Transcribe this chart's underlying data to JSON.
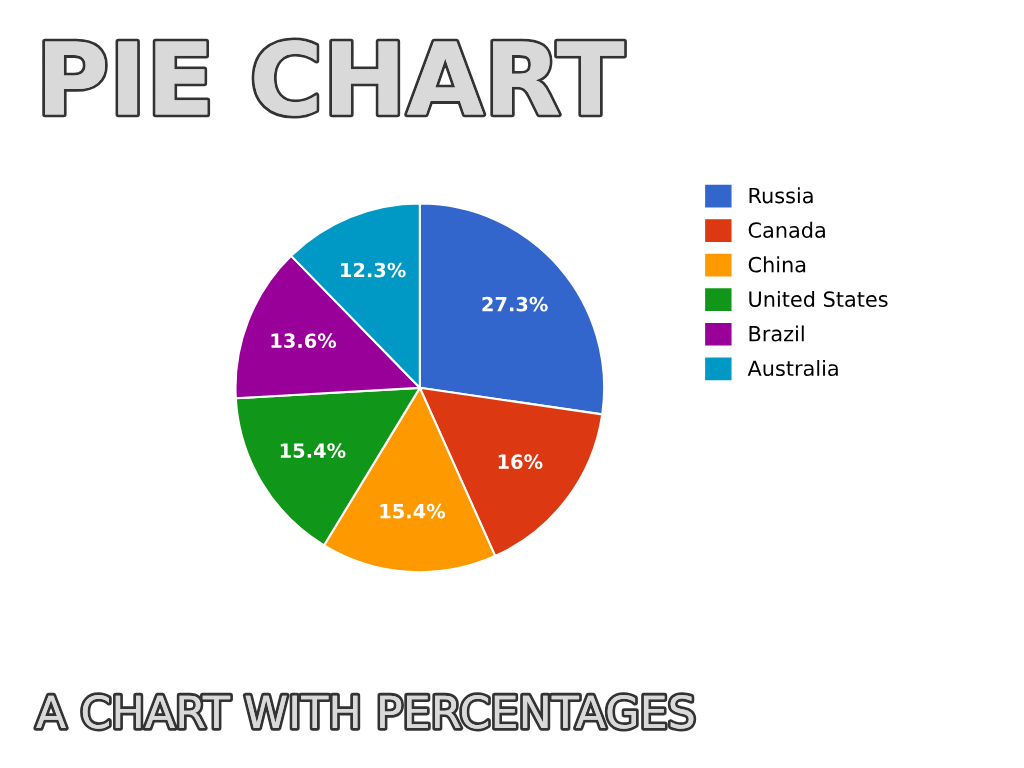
{
  "chart_data": {
    "type": "pie",
    "title": "PIE CHART",
    "subtitle": "A CHART WITH PERCENTAGES",
    "categories": [
      "Russia",
      "Canada",
      "China",
      "United States",
      "Brazil",
      "Australia"
    ],
    "values": [
      27.3,
      16,
      15.4,
      15.4,
      13.6,
      12.3
    ],
    "value_labels": [
      "27.3%",
      "16%",
      "15.4%",
      "15.4%",
      "13.6%",
      "12.3%"
    ],
    "colors": [
      "#3366cc",
      "#dc3912",
      "#ff9900",
      "#109618",
      "#990099",
      "#0099c6"
    ],
    "legend": "right"
  }
}
